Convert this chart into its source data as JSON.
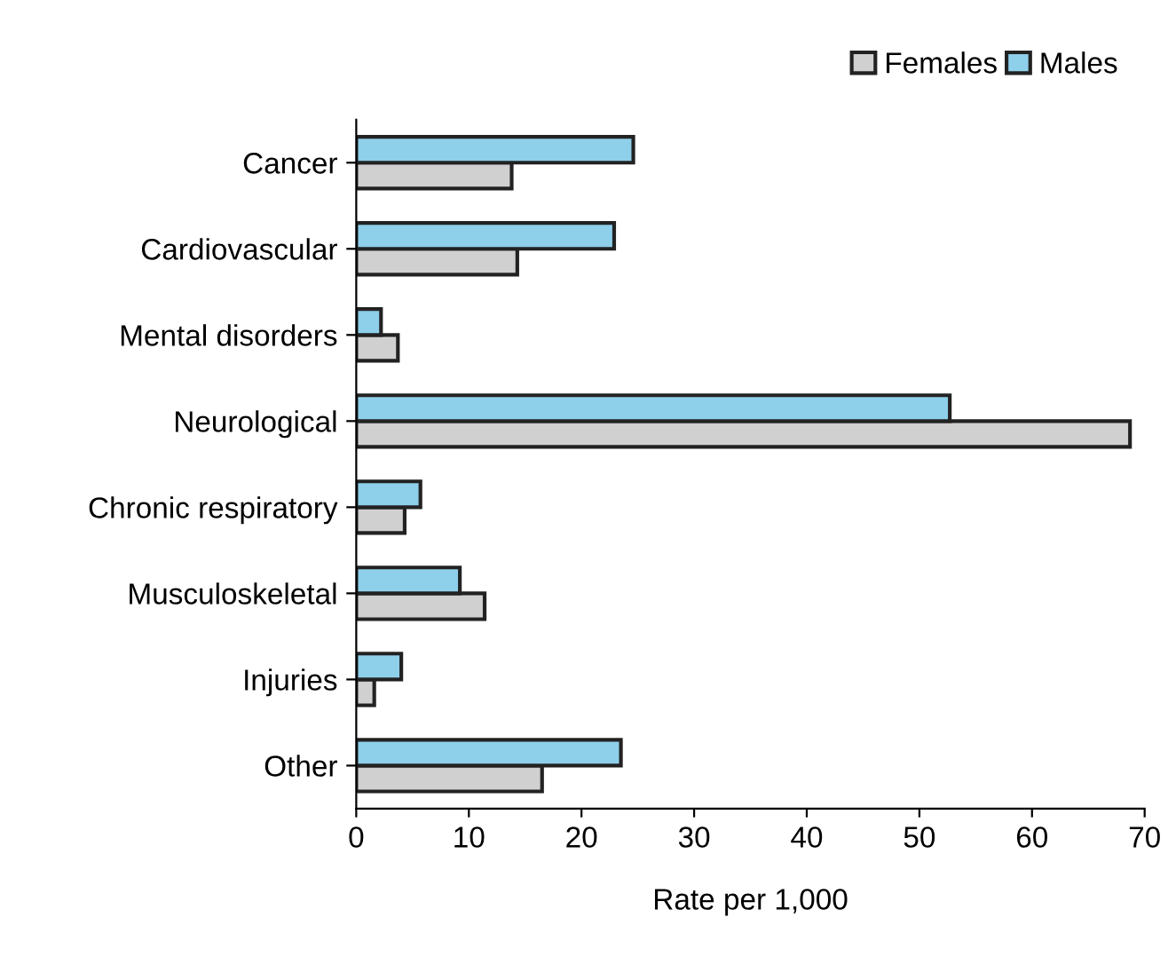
{
  "chart_data": {
    "type": "bar",
    "orientation": "horizontal",
    "xlabel": "Rate per 1,000",
    "categories": [
      "Cancer",
      "Cardiovascular",
      "Mental disorders",
      "Neurological",
      "Chronic respiratory",
      "Musculoskeletal",
      "Injuries",
      "Other"
    ],
    "series": [
      {
        "name": "Females",
        "color": "#d0d0d0",
        "values": [
          13.8,
          14.3,
          3.7,
          68.7,
          4.3,
          11.4,
          1.6,
          16.5
        ]
      },
      {
        "name": "Males",
        "color": "#8ecfea",
        "values": [
          24.6,
          22.9,
          2.2,
          52.7,
          5.7,
          9.2,
          4.0,
          23.5
        ]
      }
    ],
    "xlim": [
      0,
      70
    ],
    "xticks": [
      0,
      10,
      20,
      30,
      40,
      50,
      60,
      70
    ],
    "grid": false,
    "legend": "top right"
  }
}
